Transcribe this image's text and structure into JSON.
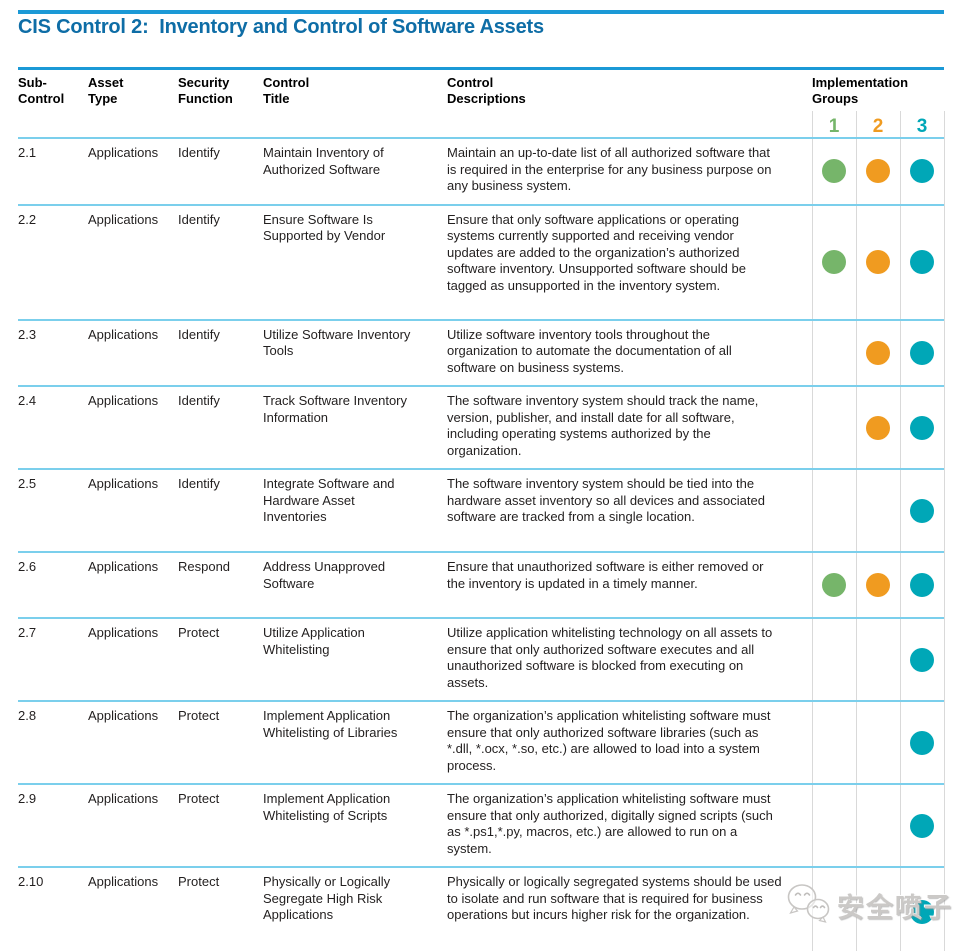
{
  "header": {
    "title": "CIS Control 2:  Inventory and Control of Software Assets"
  },
  "columns": {
    "sub_control": "Sub-\nControl",
    "asset_type": "Asset\nType",
    "security_function": "Security\nFunction",
    "control_title": "Control\nTitle",
    "control_descriptions": "Control\nDescriptions",
    "implementation_groups": "Implementation\nGroups"
  },
  "groups": [
    {
      "label": "1",
      "color": "#76b56a"
    },
    {
      "label": "2",
      "color": "#f09b20"
    },
    {
      "label": "3",
      "color": "#00a7b7"
    }
  ],
  "colors": {
    "rule_blue": "#1b99d6",
    "title_blue": "#0e6da6",
    "row_separator": "#7bcfec"
  },
  "rows": [
    {
      "id": "2.1",
      "asset_type": "Applications",
      "security_function": "Identify",
      "title": "Maintain Inventory of Authorized Software",
      "description": "Maintain an up-to-date list of all authorized software that is required in the enterprise for any business purpose on any business system.",
      "groups": [
        1,
        2,
        3
      ]
    },
    {
      "id": "2.2",
      "asset_type": "Applications",
      "security_function": "Identify",
      "title": "Ensure Software Is Supported by Vendor",
      "description": "Ensure that only software applications or operating systems currently supported and receiving vendor updates are added to the organization’s authorized software inventory. Unsupported software should be tagged as unsupported in the inventory system.",
      "groups": [
        1,
        2,
        3
      ]
    },
    {
      "id": "2.3",
      "asset_type": "Applications",
      "security_function": "Identify",
      "title": "Utilize Software Inventory Tools",
      "description": "Utilize software inventory tools throughout the organization to automate the documentation of all software on business systems.",
      "groups": [
        2,
        3
      ]
    },
    {
      "id": "2.4",
      "asset_type": "Applications",
      "security_function": "Identify",
      "title": "Track Software Inventory Information",
      "description": "The software inventory system should track the name, version, publisher, and install date for all software, including operating systems authorized by the organization.",
      "groups": [
        2,
        3
      ]
    },
    {
      "id": "2.5",
      "asset_type": "Applications",
      "security_function": "Identify",
      "title": "Integrate Software and Hardware Asset Inventories",
      "description": "The software inventory system should be tied into the hardware asset inventory so all devices and associated software are tracked from a single location.",
      "groups": [
        3
      ]
    },
    {
      "id": "2.6",
      "asset_type": "Applications",
      "security_function": "Respond",
      "title": "Address Unapproved Software",
      "description": "Ensure that unauthorized software is either removed or the inventory is updated in a timely manner.",
      "groups": [
        1,
        2,
        3
      ]
    },
    {
      "id": "2.7",
      "asset_type": "Applications",
      "security_function": "Protect",
      "title": "Utilize Application Whitelisting",
      "description": "Utilize application whitelisting technology on all assets to ensure that only authorized software executes and all unauthorized software is blocked from executing on assets.",
      "groups": [
        3
      ]
    },
    {
      "id": "2.8",
      "asset_type": "Applications",
      "security_function": "Protect",
      "title": "Implement Application Whitelisting of Libraries",
      "description": "The organization’s application whitelisting software must ensure that only authorized software libraries (such as *.dll, *.ocx, *.so, etc.) are allowed to load into a system process.",
      "groups": [
        3
      ]
    },
    {
      "id": "2.9",
      "asset_type": "Applications",
      "security_function": "Protect",
      "title": "Implement Application Whitelisting of Scripts",
      "description": "The organization’s application whitelisting software must ensure that only authorized, digitally signed scripts (such as *.ps1,*.py, macros, etc.) are allowed to run on a system.",
      "groups": [
        3
      ]
    },
    {
      "id": "2.10",
      "asset_type": "Applications",
      "security_function": "Protect",
      "title": "Physically or Logically Segregate High Risk Applications",
      "description": "Physically or logically segregated systems should be used to isolate and run software that is required for business operations but incurs higher risk for the organization.",
      "groups": [
        3
      ]
    }
  ],
  "watermark": {
    "text": "安全喷子",
    "icon": "wechat-chat-bubbles-icon"
  }
}
